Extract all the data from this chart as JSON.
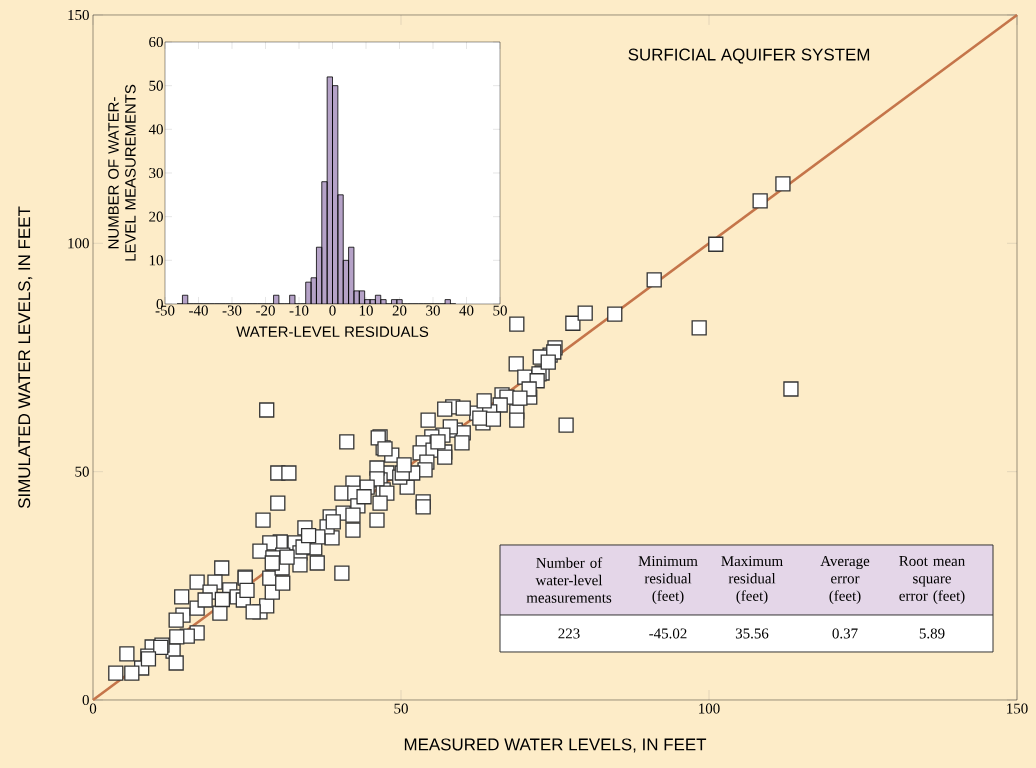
{
  "chart_data": [
    {
      "type": "scatter",
      "xlabel": "MEASURED WATER LEVELS, IN FEET",
      "ylabel": "SIMULATED WATER LEVELS, IN FEET",
      "annotations": [
        "SURFICIAL AQUIFER SYSTEM"
      ],
      "xlim": [
        0,
        150
      ],
      "ylim": [
        0,
        150
      ],
      "xticks": [
        0,
        50,
        100,
        150
      ],
      "yticks": [
        0,
        50,
        100,
        150
      ],
      "series": [
        {
          "type": "scatter",
          "color": "#ffffff",
          "marker": "square",
          "x": [
            112.0,
            108.3,
            101.1,
            91.1,
            98.4,
            113.3,
            84.7,
            77.9,
            79.9,
            76.8,
            74.2,
            75.0,
            72.9,
            72.6,
            68.8,
            68.7,
            70.1,
            72.4,
            70.9,
            66.4,
            67.2,
            68.8,
            68.8,
            63.3,
            62.3,
            58.4,
            57.1,
            54.4,
            58.8,
            60.1,
            58.0,
            56.8,
            55.0,
            53.6,
            59.9,
            53.1,
            55.2,
            57.1,
            54.2,
            57.1,
            48.5,
            47.7,
            51.0,
            53.9,
            51.9,
            49.8,
            46.6,
            47.1,
            53.6,
            53.6,
            46.6,
            47.1,
            28.2,
            41.2,
            46.3,
            47.4,
            30.0,
            31.8,
            46.1,
            50.2,
            42.2,
            46.1,
            40.4,
            42.5,
            44.5,
            47.7,
            30.0,
            46.6,
            43.0,
            27.6,
            46.1,
            38.5,
            40.6,
            42.2,
            34.4,
            42.2,
            38.8,
            30.4,
            28.7,
            27.1,
            32.8,
            36.0,
            30.8,
            33.6,
            38.0,
            36.5,
            36.4,
            33.6,
            40.4,
            24.7,
            29.2,
            60.1,
            20.9,
            16.9,
            19.8,
            19.0,
            22.2,
            24.7,
            23.4,
            20.6,
            14.4,
            14.6,
            16.9,
            18.2,
            13.5,
            16.9,
            15.3,
            13.6,
            13.0,
            13.5,
            9.6,
            8.9,
            7.9,
            5.5,
            6.3,
            3.7,
            11.2,
            27.1,
            28.2,
            24.4,
            26.0,
            29.1,
            28.7,
            30.7,
            31.5,
            29.1,
            34.1,
            30.8,
            74.8,
            73.9,
            72.1,
            70.8,
            69.3,
            66.1,
            64.4,
            62.8,
            50.5,
            44.0,
            39.0,
            35.0,
            25.0,
            21.0,
            11.0,
            9.0,
            63.5,
            56.0,
            65.0
          ],
          "values": [
            113.0,
            109.3,
            99.8,
            92.0,
            81.5,
            68.1,
            84.5,
            82.5,
            84.7,
            60.2,
            75.5,
            77.1,
            71.6,
            75.1,
            82.3,
            73.6,
            70.7,
            71.4,
            66.3,
            66.8,
            66.3,
            63.1,
            61.3,
            60.7,
            62.8,
            64.2,
            63.7,
            61.3,
            59.1,
            58.5,
            59.8,
            58.0,
            57.6,
            56.3,
            56.3,
            54.1,
            54.7,
            54.3,
            52.1,
            53.2,
            53.6,
            49.7,
            46.6,
            50.4,
            49.7,
            48.8,
            48.2,
            46.0,
            43.4,
            42.3,
            57.6,
            55.2,
            63.5,
            56.5,
            57.4,
            55.0,
            49.7,
            49.7,
            50.8,
            49.7,
            47.5,
            48.4,
            45.3,
            45.3,
            46.6,
            45.3,
            43.1,
            43.1,
            42.5,
            39.4,
            39.4,
            40.1,
            40.9,
            40.5,
            37.7,
            37.2,
            35.5,
            34.6,
            34.4,
            32.6,
            34.4,
            33.3,
            31.7,
            32.2,
            37.9,
            35.7,
            30.0,
            29.6,
            27.8,
            26.9,
            31.1,
            63.9,
            28.9,
            25.8,
            25.8,
            23.6,
            24.1,
            26.7,
            22.6,
            19.0,
            22.6,
            18.6,
            20.1,
            21.9,
            17.5,
            14.7,
            14.0,
            13.8,
            10.7,
            8.1,
            11.6,
            9.6,
            7.0,
            10.1,
            5.9,
            5.9,
            12.0,
            19.3,
            20.6,
            21.9,
            19.3,
            23.6,
            26.7,
            28.9,
            31.3,
            30.0,
            33.5,
            25.6,
            76.2,
            74.0,
            69.9,
            68.1,
            66.1,
            64.6,
            63.1,
            61.7,
            51.5,
            44.5,
            39.0,
            36.0,
            24.0,
            22.0,
            11.5,
            9.0,
            65.5,
            56.5,
            61.5
          ]
        },
        {
          "type": "line",
          "color": "#c5754a",
          "x": [
            0,
            150
          ],
          "values": [
            0,
            150
          ]
        }
      ]
    },
    {
      "type": "histogram",
      "xlabel": "WATER-LEVEL RESIDUALS",
      "ylabel": "NUMBER OF WATER-LEVEL MEASUREMENTS",
      "color": "#b5a2c7",
      "xlim": [
        -50,
        50
      ],
      "ylim": [
        0,
        60
      ],
      "xticks": [
        -50,
        -40,
        -30,
        -20,
        -10,
        0,
        10,
        20,
        30,
        40,
        50
      ],
      "yticks": [
        0,
        10,
        20,
        30,
        40,
        50,
        60
      ],
      "bins": [
        -46.4,
        -44.8,
        -43.2,
        -41.6,
        -40,
        -38.4,
        -36.8,
        -35.2,
        -33.6,
        -32,
        -30.4,
        -28.8,
        -27.2,
        -25.6,
        -24,
        -22.4,
        -20.8,
        -19.2,
        -17.6,
        -16,
        -14.4,
        -12.8,
        -11.2,
        -9.6,
        -8,
        -6.4,
        -4.8,
        -3.2,
        -1.6,
        0,
        1.6,
        3.2,
        4.8,
        6.4,
        8,
        9.6,
        11.2,
        12.8,
        14.4,
        16,
        17.6,
        19.2,
        20.8,
        22.4,
        24,
        25.6,
        27.2,
        28.8,
        30.4,
        32,
        33.6,
        35.2,
        36.8
      ],
      "values": [
        0,
        2,
        0,
        0,
        0,
        0,
        0,
        0,
        0,
        0,
        0,
        0,
        0,
        0,
        0,
        0,
        0,
        0,
        2,
        0,
        0,
        2,
        0,
        0,
        5,
        6,
        13,
        28,
        52,
        50,
        25,
        10,
        13,
        3,
        3,
        1,
        1,
        2,
        1,
        0,
        1,
        1,
        0,
        0,
        0,
        0,
        0,
        0,
        0,
        0,
        1,
        0
      ]
    },
    {
      "type": "other",
      "categories": [
        "Number of water-level measurements",
        "Minimum residual (feet)",
        "Maximum residual (feet)",
        "Average error (feet)",
        "Root mean square error (feet)"
      ],
      "values": [
        223,
        -45.02,
        35.56,
        0.37,
        5.89
      ],
      "data_labels": true
    }
  ]
}
